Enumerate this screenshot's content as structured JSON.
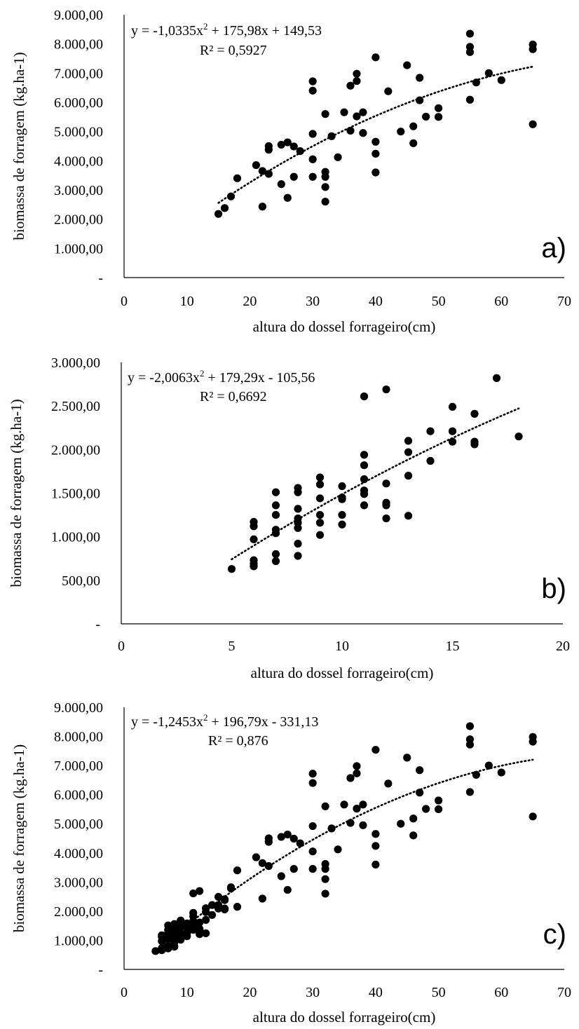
{
  "colors": {
    "background": "#ffffff",
    "marker": "#000000",
    "axis": "#000000",
    "trendline": "#000000"
  },
  "chart_data": [
    {
      "type": "scatter",
      "panel_label": "a)",
      "xlabel": "altura do dossel forrageiro(cm)",
      "ylabel": "biomassa de forragem (kg.ha-1)",
      "xlim": [
        0,
        70
      ],
      "ylim": [
        0,
        9000
      ],
      "x_ticks": [
        "0",
        "10",
        "20",
        "30",
        "40",
        "50",
        "60",
        "70"
      ],
      "x_tick_values": [
        0,
        10,
        20,
        30,
        40,
        50,
        60,
        70
      ],
      "y_ticks": [
        "-",
        "1.000,00",
        "2.000,00",
        "3.000,00",
        "4.000,00",
        "5.000,00",
        "6.000,00",
        "7.000,00",
        "8.000,00",
        "9.000,00"
      ],
      "y_tick_values": [
        0,
        1000,
        2000,
        3000,
        4000,
        5000,
        6000,
        7000,
        8000,
        9000
      ],
      "grid": false,
      "legend": "none",
      "trendline": {
        "type": "polynomial",
        "coefficients": [
          -1.0335,
          175.98,
          149.53
        ],
        "x_range": [
          15,
          65
        ],
        "equation_parts": [
          "y = -1,0335x",
          "2",
          " + 175,98x + 149,53"
        ],
        "r2_label": "R² = 0,5927"
      },
      "points": [
        [
          15,
          2180
        ],
        [
          16,
          2380
        ],
        [
          17,
          2780
        ],
        [
          18,
          3400
        ],
        [
          21,
          3850
        ],
        [
          22,
          3650
        ],
        [
          22,
          2430
        ],
        [
          23,
          3550
        ],
        [
          23,
          4380
        ],
        [
          23,
          4500
        ],
        [
          25,
          4550
        ],
        [
          25,
          3200
        ],
        [
          26,
          4630
        ],
        [
          26,
          2730
        ],
        [
          27,
          4490
        ],
        [
          27,
          3450
        ],
        [
          28,
          4330
        ],
        [
          30,
          6720
        ],
        [
          30,
          6400
        ],
        [
          30,
          4920
        ],
        [
          30,
          4050
        ],
        [
          30,
          3450
        ],
        [
          32,
          5600
        ],
        [
          32,
          3620
        ],
        [
          32,
          3450
        ],
        [
          32,
          3100
        ],
        [
          32,
          2600
        ],
        [
          33,
          4840
        ],
        [
          34,
          4120
        ],
        [
          35,
          5660
        ],
        [
          36,
          6570
        ],
        [
          36,
          5030
        ],
        [
          37,
          6980
        ],
        [
          37,
          6730
        ],
        [
          37,
          5520
        ],
        [
          38,
          5660
        ],
        [
          38,
          4950
        ],
        [
          40,
          7540
        ],
        [
          40,
          4650
        ],
        [
          40,
          4240
        ],
        [
          40,
          3600
        ],
        [
          42,
          6380
        ],
        [
          44,
          5000
        ],
        [
          45,
          7270
        ],
        [
          46,
          5180
        ],
        [
          46,
          4600
        ],
        [
          47,
          6840
        ],
        [
          47,
          6070
        ],
        [
          48,
          5510
        ],
        [
          50,
          5800
        ],
        [
          50,
          5500
        ],
        [
          55,
          8350
        ],
        [
          55,
          7900
        ],
        [
          55,
          7720
        ],
        [
          55,
          6090
        ],
        [
          56,
          6680
        ],
        [
          58,
          7000
        ],
        [
          60,
          6760
        ],
        [
          65,
          7980
        ],
        [
          65,
          7820
        ],
        [
          65,
          5250
        ]
      ]
    },
    {
      "type": "scatter",
      "panel_label": "b)",
      "xlabel": "altura do dossel forrageiro(cm)",
      "ylabel": "biomassa de forragem (kg.ha-1)",
      "xlim": [
        0,
        20
      ],
      "ylim": [
        0,
        3000
      ],
      "x_ticks": [
        "0",
        "5",
        "10",
        "15",
        "20"
      ],
      "x_tick_values": [
        0,
        5,
        10,
        15,
        20
      ],
      "y_ticks": [
        "-",
        "500,00",
        "1.000,00",
        "1.500,00",
        "2.000,00",
        "2.500,00",
        "3.000,00"
      ],
      "y_tick_values": [
        0,
        500,
        1000,
        1500,
        2000,
        2500,
        3000
      ],
      "grid": false,
      "legend": "none",
      "trendline": {
        "type": "polynomial",
        "coefficients": [
          -2.0063,
          179.29,
          -105.56
        ],
        "x_range": [
          5,
          18
        ],
        "equation_parts": [
          "y = -2,0063x",
          "2",
          " + 179,29x - 105,56"
        ],
        "r2_label": "R² = 0,6692"
      },
      "points": [
        [
          5,
          630
        ],
        [
          6,
          1170
        ],
        [
          6,
          1120
        ],
        [
          6,
          970
        ],
        [
          6,
          730
        ],
        [
          6,
          690
        ],
        [
          6,
          660
        ],
        [
          7,
          1510
        ],
        [
          7,
          1360
        ],
        [
          7,
          1250
        ],
        [
          7,
          1080
        ],
        [
          7,
          1040
        ],
        [
          7,
          800
        ],
        [
          7,
          720
        ],
        [
          8,
          1560
        ],
        [
          8,
          1510
        ],
        [
          8,
          1320
        ],
        [
          8,
          1210
        ],
        [
          8,
          1160
        ],
        [
          8,
          1100
        ],
        [
          8,
          920
        ],
        [
          8,
          780
        ],
        [
          9,
          1680
        ],
        [
          9,
          1600
        ],
        [
          9,
          1440
        ],
        [
          9,
          1250
        ],
        [
          9,
          1160
        ],
        [
          9,
          1020
        ],
        [
          10,
          1580
        ],
        [
          10,
          1450
        ],
        [
          10,
          1430
        ],
        [
          10,
          1250
        ],
        [
          10,
          1140
        ],
        [
          11,
          2610
        ],
        [
          11,
          1940
        ],
        [
          11,
          1820
        ],
        [
          11,
          1660
        ],
        [
          11,
          1530
        ],
        [
          11,
          1490
        ],
        [
          11,
          1360
        ],
        [
          12,
          2690
        ],
        [
          12,
          1610
        ],
        [
          12,
          1390
        ],
        [
          12,
          1360
        ],
        [
          12,
          1210
        ],
        [
          13,
          2100
        ],
        [
          13,
          1970
        ],
        [
          13,
          1700
        ],
        [
          13,
          1240
        ],
        [
          14,
          2210
        ],
        [
          14,
          1870
        ],
        [
          15,
          2490
        ],
        [
          15,
          2210
        ],
        [
          15,
          2090
        ],
        [
          16,
          2410
        ],
        [
          16,
          2090
        ],
        [
          16,
          2060
        ],
        [
          17,
          2820
        ],
        [
          18,
          2150
        ]
      ]
    },
    {
      "type": "scatter",
      "panel_label": "c)",
      "xlabel": "altura do dossel forrageiro(cm)",
      "ylabel": "biomassa de forragem (kg.ha-1)",
      "xlim": [
        0,
        70
      ],
      "ylim": [
        0,
        9000
      ],
      "x_ticks": [
        "0",
        "10",
        "20",
        "30",
        "40",
        "50",
        "60",
        "70"
      ],
      "x_tick_values": [
        0,
        10,
        20,
        30,
        40,
        50,
        60,
        70
      ],
      "y_ticks": [
        "-",
        "1.000,00",
        "2.000,00",
        "3.000,00",
        "4.000,00",
        "5.000,00",
        "6.000,00",
        "7.000,00",
        "8.000,00",
        "9.000,00"
      ],
      "y_tick_values": [
        0,
        1000,
        2000,
        3000,
        4000,
        5000,
        6000,
        7000,
        8000,
        9000
      ],
      "grid": false,
      "legend": "none",
      "trendline": {
        "type": "polynomial",
        "coefficients": [
          -1.2453,
          196.79,
          -331.13
        ],
        "x_range": [
          5,
          65
        ],
        "equation_parts": [
          "y = -1,2453x",
          "2",
          " + 196,79x - 331,13"
        ],
        "r2_label": "R² = 0,876"
      },
      "points": [
        [
          5,
          630
        ],
        [
          6,
          1170
        ],
        [
          6,
          1120
        ],
        [
          6,
          970
        ],
        [
          6,
          730
        ],
        [
          6,
          690
        ],
        [
          6,
          660
        ],
        [
          7,
          1510
        ],
        [
          7,
          1360
        ],
        [
          7,
          1250
        ],
        [
          7,
          1080
        ],
        [
          7,
          1040
        ],
        [
          7,
          800
        ],
        [
          7,
          720
        ],
        [
          8,
          1560
        ],
        [
          8,
          1510
        ],
        [
          8,
          1320
        ],
        [
          8,
          1210
        ],
        [
          8,
          1160
        ],
        [
          8,
          1100
        ],
        [
          8,
          920
        ],
        [
          8,
          780
        ],
        [
          9,
          1680
        ],
        [
          9,
          1600
        ],
        [
          9,
          1440
        ],
        [
          9,
          1250
        ],
        [
          9,
          1160
        ],
        [
          9,
          1020
        ],
        [
          10,
          1580
        ],
        [
          10,
          1450
        ],
        [
          10,
          1430
        ],
        [
          10,
          1250
        ],
        [
          10,
          1140
        ],
        [
          11,
          2610
        ],
        [
          11,
          1940
        ],
        [
          11,
          1820
        ],
        [
          11,
          1660
        ],
        [
          11,
          1530
        ],
        [
          11,
          1490
        ],
        [
          11,
          1360
        ],
        [
          12,
          2690
        ],
        [
          12,
          1610
        ],
        [
          12,
          1390
        ],
        [
          12,
          1360
        ],
        [
          12,
          1210
        ],
        [
          13,
          2100
        ],
        [
          13,
          1970
        ],
        [
          13,
          1700
        ],
        [
          13,
          1240
        ],
        [
          14,
          2210
        ],
        [
          14,
          1870
        ],
        [
          15,
          2490
        ],
        [
          15,
          2210
        ],
        [
          15,
          2090
        ],
        [
          16,
          2410
        ],
        [
          16,
          2090
        ],
        [
          16,
          2060
        ],
        [
          17,
          2820
        ],
        [
          18,
          2150
        ],
        [
          15,
          2180
        ],
        [
          16,
          2380
        ],
        [
          17,
          2780
        ],
        [
          18,
          3400
        ],
        [
          21,
          3850
        ],
        [
          22,
          3650
        ],
        [
          22,
          2430
        ],
        [
          23,
          3550
        ],
        [
          23,
          4380
        ],
        [
          23,
          4500
        ],
        [
          25,
          4550
        ],
        [
          25,
          3200
        ],
        [
          26,
          4630
        ],
        [
          26,
          2730
        ],
        [
          27,
          4490
        ],
        [
          27,
          3450
        ],
        [
          28,
          4330
        ],
        [
          30,
          6720
        ],
        [
          30,
          6400
        ],
        [
          30,
          4920
        ],
        [
          30,
          4050
        ],
        [
          30,
          3450
        ],
        [
          32,
          5600
        ],
        [
          32,
          3620
        ],
        [
          32,
          3450
        ],
        [
          32,
          3100
        ],
        [
          32,
          2600
        ],
        [
          33,
          4840
        ],
        [
          34,
          4120
        ],
        [
          35,
          5660
        ],
        [
          36,
          6570
        ],
        [
          36,
          5030
        ],
        [
          37,
          6980
        ],
        [
          37,
          6730
        ],
        [
          37,
          5520
        ],
        [
          38,
          5660
        ],
        [
          38,
          4950
        ],
        [
          40,
          7540
        ],
        [
          40,
          4650
        ],
        [
          40,
          4240
        ],
        [
          40,
          3600
        ],
        [
          42,
          6380
        ],
        [
          44,
          5000
        ],
        [
          45,
          7270
        ],
        [
          46,
          5180
        ],
        [
          46,
          4600
        ],
        [
          47,
          6840
        ],
        [
          47,
          6070
        ],
        [
          48,
          5510
        ],
        [
          50,
          5800
        ],
        [
          50,
          5500
        ],
        [
          55,
          8350
        ],
        [
          55,
          7900
        ],
        [
          55,
          7720
        ],
        [
          55,
          6090
        ],
        [
          56,
          6680
        ],
        [
          58,
          7000
        ],
        [
          60,
          6760
        ],
        [
          65,
          7980
        ],
        [
          65,
          7820
        ],
        [
          65,
          5250
        ]
      ]
    }
  ]
}
